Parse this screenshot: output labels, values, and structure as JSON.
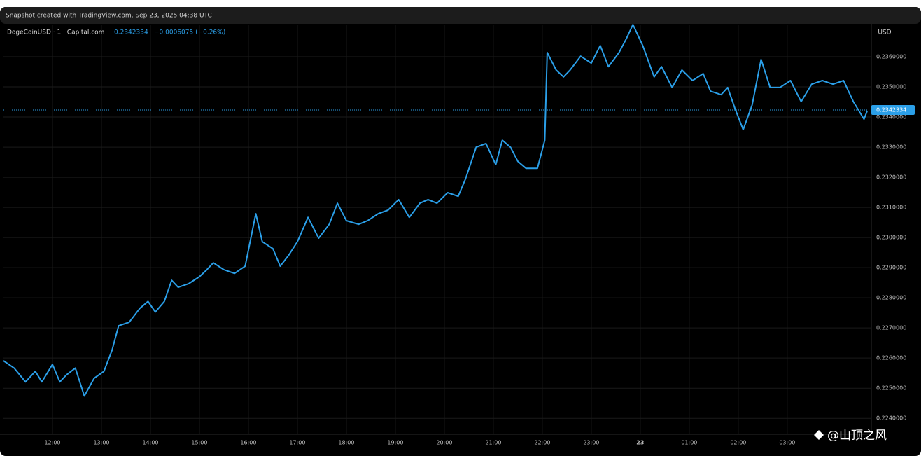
{
  "header": {
    "snapshot": "Snapshot created with TradingView.com, Sep 23, 2025 04:38 UTC"
  },
  "watermark": "@山顶之风",
  "chart_data": {
    "type": "line",
    "currency": "USD",
    "legend_values": [
      "0.2342334",
      "−0.0006075 (−0.26%)"
    ],
    "current_price": 0.2342334,
    "x": [
      "11:00",
      "11:13",
      "11:27",
      "11:39",
      "11:47",
      "12:00",
      "12:09",
      "12:17",
      "12:28",
      "12:39",
      "12:51",
      "13:03",
      "13:13",
      "13:21",
      "13:34",
      "13:47",
      "13:57",
      "14:06",
      "14:17",
      "14:26",
      "14:34",
      "14:47",
      "15:00",
      "15:09",
      "15:17",
      "15:30",
      "15:43",
      "15:56",
      "16:09",
      "16:17",
      "16:30",
      "16:39",
      "16:49",
      "17:00",
      "17:13",
      "17:26",
      "17:39",
      "17:49",
      "18:00",
      "18:15",
      "18:26",
      "18:39",
      "18:51",
      "19:04",
      "19:17",
      "19:30",
      "19:40",
      "19:51",
      "20:04",
      "20:17",
      "20:26",
      "20:39",
      "20:51",
      "21:03",
      "21:11",
      "21:21",
      "21:30",
      "21:40",
      "21:54",
      "22:03",
      "22:06",
      "22:17",
      "22:26",
      "22:34",
      "22:47",
      "23:00",
      "23:11",
      "23:21",
      "23:34",
      "23:43",
      "23:51",
      "00:03",
      "00:17",
      "00:26",
      "00:39",
      "00:51",
      "01:04",
      "01:17",
      "01:26",
      "01:39",
      "01:47",
      "01:56",
      "02:06",
      "02:17",
      "02:28",
      "02:39",
      "02:51",
      "03:04",
      "03:17",
      "03:30",
      "03:43",
      "03:56",
      "04:09",
      "04:21",
      "04:34",
      "04:38"
    ],
    "series": [
      {
        "name": "DogeCoinUSD · 1 · Capital.com",
        "color": "#2b9fe8",
        "values": [
          0.22591,
          0.22567,
          0.22521,
          0.22556,
          0.22521,
          0.22579,
          0.22521,
          0.22544,
          0.22567,
          0.22474,
          0.22533,
          0.22556,
          0.22626,
          0.22707,
          0.22719,
          0.22765,
          0.22788,
          0.22753,
          0.22788,
          0.22858,
          0.22835,
          0.22847,
          0.2287,
          0.22893,
          0.22916,
          0.22893,
          0.22881,
          0.22905,
          0.23079,
          0.22986,
          0.22963,
          0.22905,
          0.2294,
          0.22986,
          0.23067,
          0.22998,
          0.23044,
          0.23114,
          0.23056,
          0.23044,
          0.23056,
          0.23079,
          0.23091,
          0.23126,
          0.23067,
          0.23114,
          0.23126,
          0.23114,
          0.23149,
          0.23137,
          0.23195,
          0.233,
          0.23312,
          0.23242,
          0.23323,
          0.233,
          0.23253,
          0.2323,
          0.2323,
          0.23323,
          0.23614,
          0.23556,
          0.23533,
          0.23556,
          0.23602,
          0.23579,
          0.23637,
          0.23567,
          0.23614,
          0.2366,
          0.23707,
          0.23637,
          0.23533,
          0.23567,
          0.23498,
          0.23556,
          0.23521,
          0.23544,
          0.23486,
          0.23474,
          0.23498,
          0.23428,
          0.23358,
          0.2344,
          0.23591,
          0.23498,
          0.23498,
          0.23521,
          0.23451,
          0.23509,
          0.23521,
          0.23509,
          0.23521,
          0.23451,
          0.23393,
          0.23421
        ]
      }
    ],
    "xlim": [
      "11:00",
      "04:43"
    ],
    "xticks": [
      "12:00",
      "13:00",
      "14:00",
      "15:00",
      "16:00",
      "17:00",
      "18:00",
      "19:00",
      "20:00",
      "21:00",
      "22:00",
      "23:00",
      {
        "value": "00:00",
        "label": "23"
      },
      "01:00",
      "02:00",
      "03:00"
    ],
    "ylim": [
      0.22347,
      0.23707
    ],
    "yticks": [
      {
        "value": 0.224,
        "label": "0.2240000"
      },
      {
        "value": 0.225,
        "label": "0.2250000"
      },
      {
        "value": 0.226,
        "label": "0.2260000"
      },
      {
        "value": 0.227,
        "label": "0.2270000"
      },
      {
        "value": 0.228,
        "label": "0.2280000"
      },
      {
        "value": 0.229,
        "label": "0.2290000"
      },
      {
        "value": 0.23,
        "label": "0.2300000"
      },
      {
        "value": 0.231,
        "label": "0.2310000"
      },
      {
        "value": 0.232,
        "label": "0.2320000"
      },
      {
        "value": 0.233,
        "label": "0.2330000"
      },
      {
        "value": 0.234,
        "label": "0.2340000"
      },
      {
        "value": 0.235,
        "label": "0.2350000"
      },
      {
        "value": 0.236,
        "label": "0.2360000"
      }
    ],
    "grid": true
  }
}
